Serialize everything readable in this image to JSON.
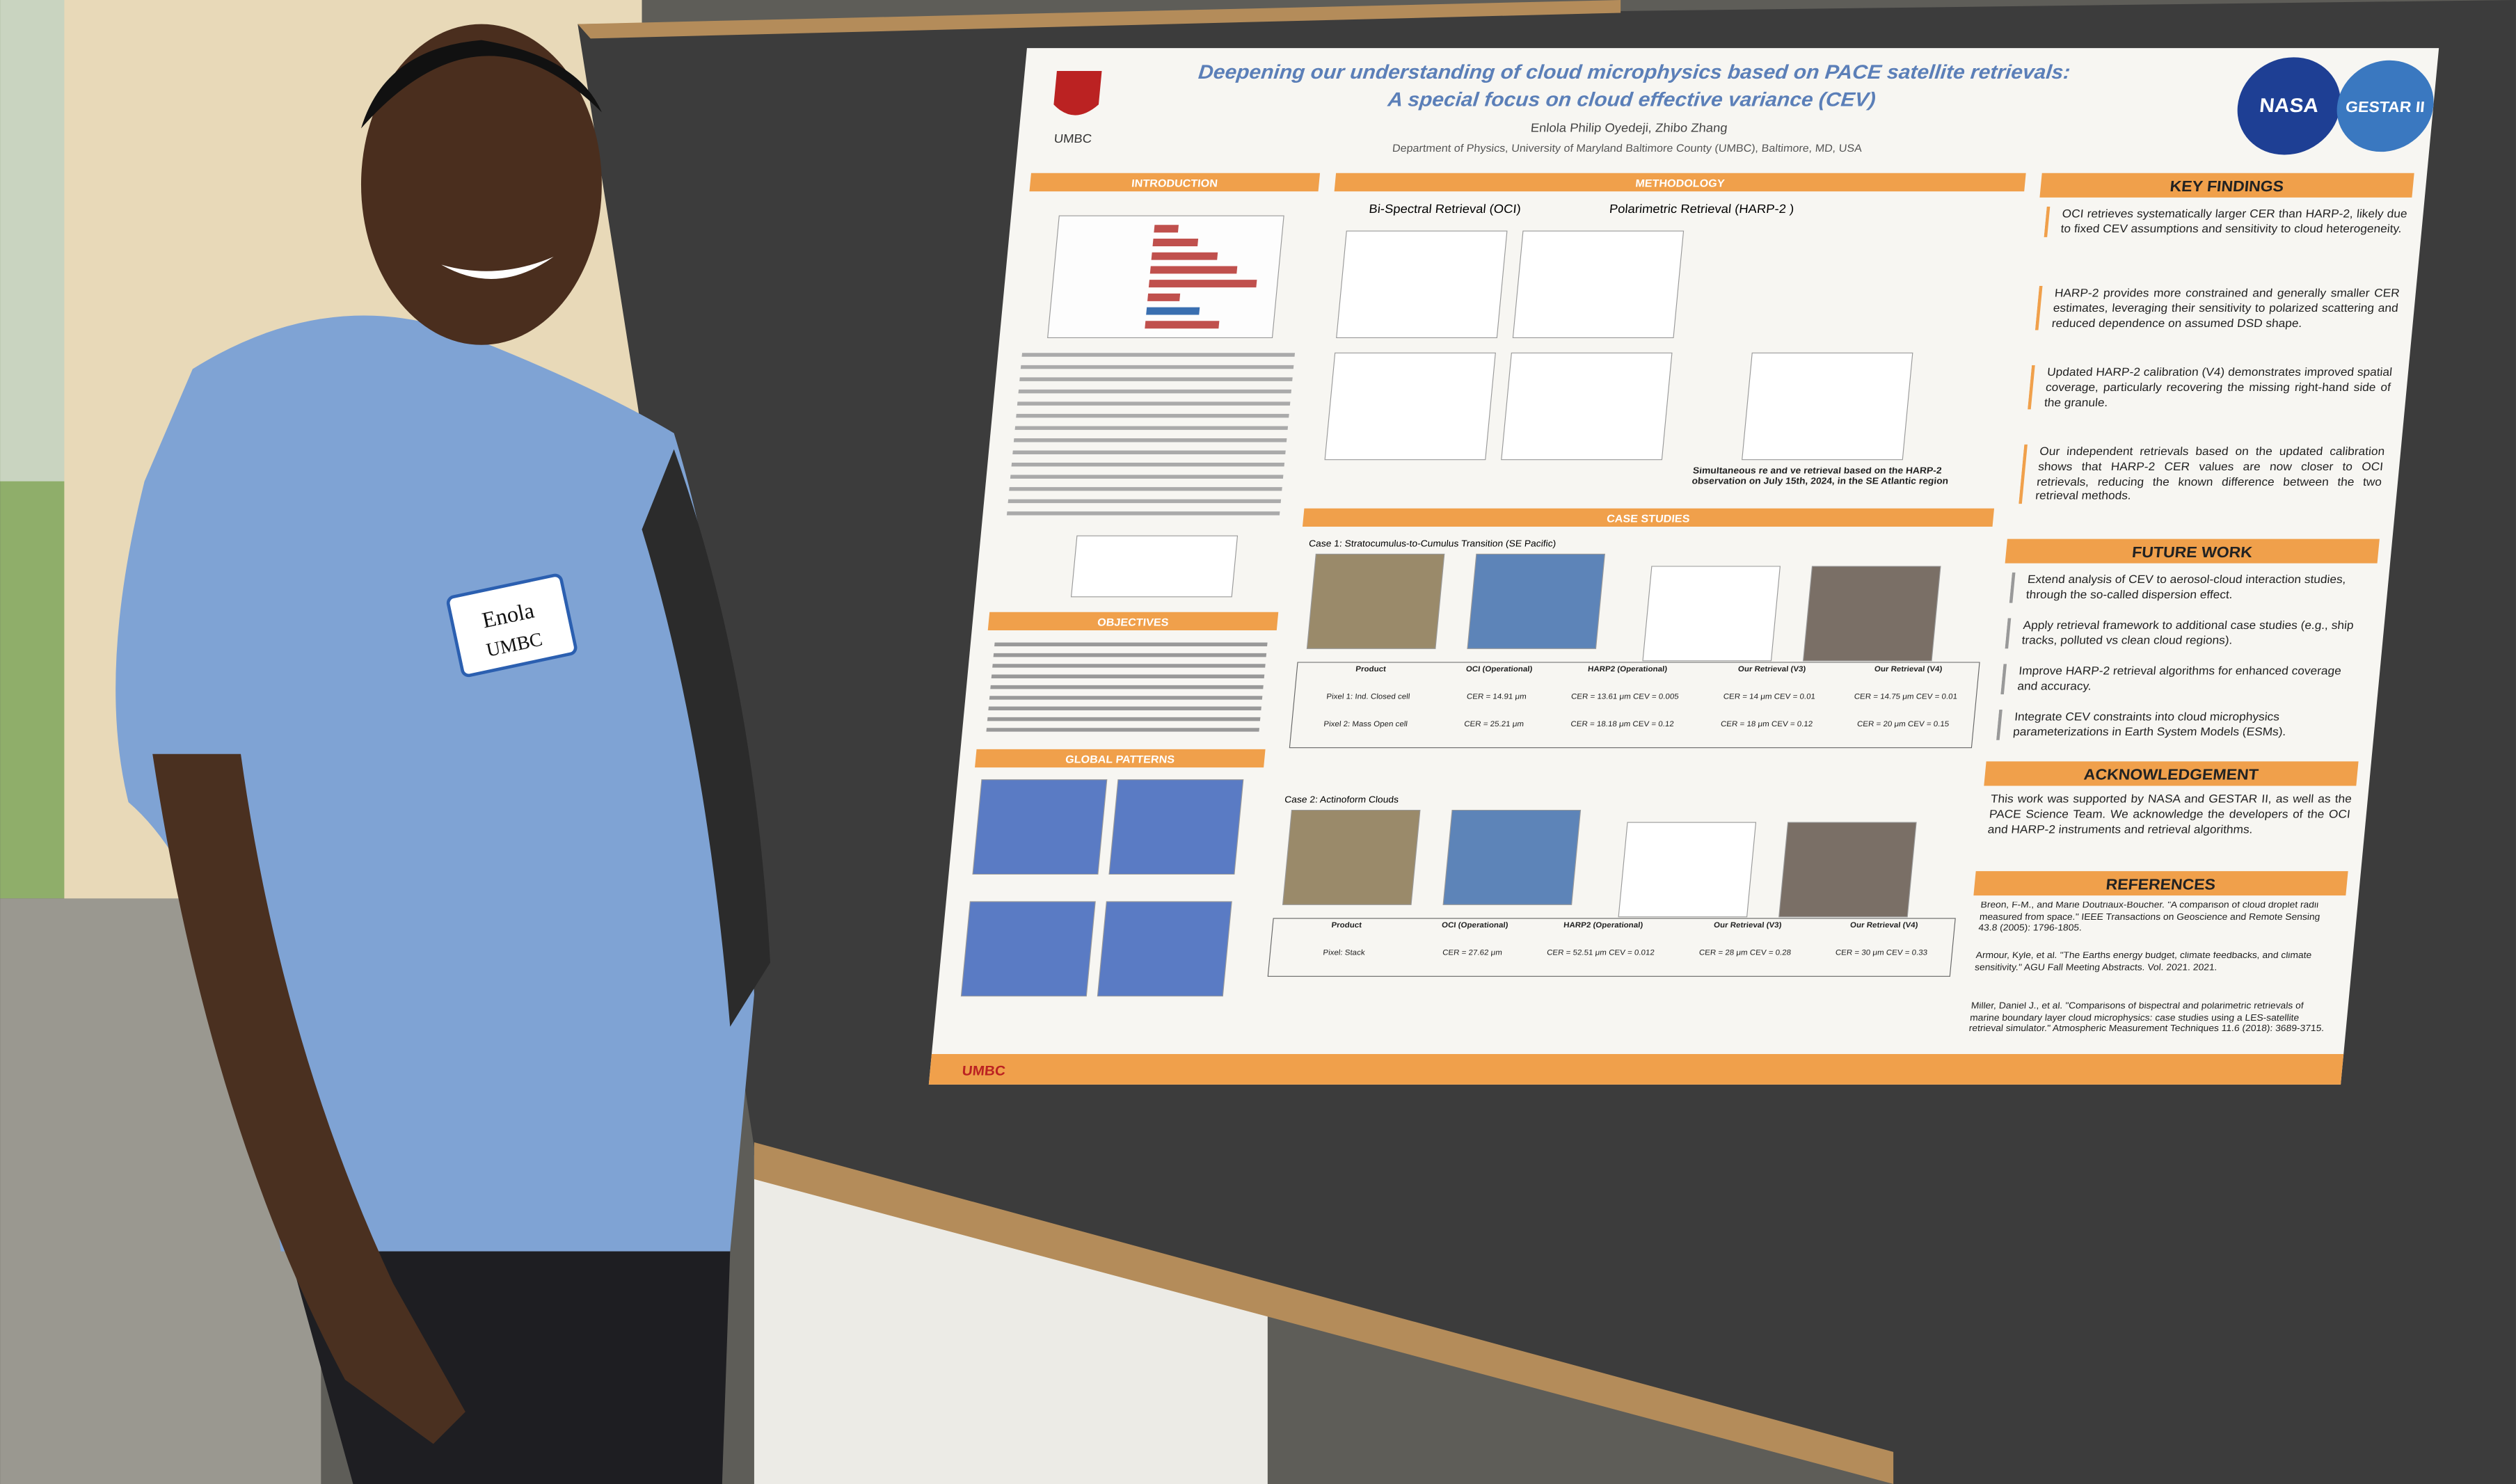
{
  "poster": {
    "title_line1": "Deepening our understanding of cloud microphysics based on PACE satellite retrievals:",
    "title_line2": "A special focus on cloud effective variance (CEV)",
    "authors": "Enlola Philip Oyedeji, Zhibo Zhang",
    "affiliation": "Department of Physics, University of Maryland Baltimore County (UMBC), Baltimore, MD, USA",
    "logo_left": "UMBC",
    "logo_nasa": "NASA",
    "logo_gestar": "GESTAR II",
    "footer_logo": "UMBC",
    "introduction": {
      "heading": "INTRODUCTION"
    },
    "methodology": {
      "heading": "METHODOLOGY",
      "left_title": "Bi-Spectral Retrieval (OCI)",
      "right_title": "Polarimetric Retrieval (HARP-2 )",
      "caption": "Simultaneous re and ve retrieval based on the HARP-2 observation on July 15th, 2024, in the SE Atlantic region"
    },
    "objectives": {
      "heading": "OBJECTIVES"
    },
    "global_patterns": {
      "heading": "GLOBAL PATTERNS"
    },
    "case_studies": {
      "heading": "CASE STUDIES",
      "case1": "Case 1: Stratocumulus-to-Cumulus Transition (SE Pacific)",
      "case2": "Case 2: Actinoform Clouds",
      "table_header": [
        "Product",
        "OCI (Operational)",
        "HARP2 (Operational)",
        "Our Retrieval (V3)",
        "Our Retrieval (V4)"
      ],
      "table1": [
        [
          "Pixel 1: Ind. Closed cell",
          "CER = 14.91 μm",
          "CER = 13.61 μm CEV = 0.005",
          "CER = 14 μm CEV = 0.01",
          "CER = 14.75 μm CEV = 0.01"
        ],
        [
          "Pixel 2: Mass Open cell",
          "CER = 25.21 μm",
          "CER = 18.18 μm CEV = 0.12",
          "CER = 18 μm CEV = 0.12",
          "CER = 20 μm CEV = 0.15"
        ]
      ],
      "table2": [
        [
          "Pixel: Stack",
          "CER = 27.62 μm",
          "CER = 52.51 μm CEV = 0.012",
          "CER = 28 μm CEV = 0.28",
          "CER = 30 μm CEV = 0.33"
        ]
      ]
    },
    "key_findings": {
      "heading": "KEY FINDINGS",
      "items": [
        "OCI retrieves systematically larger CER than HARP-2, likely due to fixed CEV assumptions and sensitivity to cloud heterogeneity.",
        "HARP-2 provides more constrained and generally smaller CER estimates, leveraging their sensitivity to polarized scattering and reduced dependence on assumed DSD shape.",
        "Updated HARP-2 calibration (V4) demonstrates improved spatial coverage, particularly recovering the missing right-hand side of the granule.",
        "Our independent retrievals based on the updated calibration shows that HARP-2 CER values are now closer to OCI retrievals, reducing the known difference between the two retrieval methods."
      ]
    },
    "future_work": {
      "heading": "FUTURE WORK",
      "items": [
        "Extend analysis of CEV to aerosol-cloud interaction studies, through the so-called dispersion effect.",
        "Apply retrieval framework to additional case studies (e.g., ship tracks, polluted vs clean cloud regions).",
        "Improve HARP-2 retrieval algorithms for enhanced coverage and accuracy.",
        "Integrate CEV constraints into cloud microphysics parameterizations in Earth System Models (ESMs)."
      ]
    },
    "acknowledgement": {
      "heading": "ACKNOWLEDGEMENT",
      "text": "This work was supported by NASA and GESTAR II, as well as the PACE Science Team. We acknowledge the developers of the OCI and HARP-2 instruments and retrieval algorithms."
    },
    "references": {
      "heading": "REFERENCES",
      "items": [
        "Breon, F-M., and Marie Doutriaux-Boucher. \"A comparison of cloud droplet radii measured from space.\" IEEE Transactions on Geoscience and Remote Sensing 43.8 (2005): 1796-1805.",
        "Armour, Kyle, et al. \"The Earths energy budget, climate feedbacks, and climate sensitivity.\" AGU Fall Meeting Abstracts. Vol. 2021. 2021.",
        "Miller, Daniel J., et al. \"Comparisons of bispectral and polarimetric retrievals of marine boundary layer cloud microphysics: case studies using a LES-satellite retrieval simulator.\" Atmospheric Measurement Techniques 11.6 (2018): 3689-3715."
      ]
    }
  },
  "name_tag": {
    "name": "Enola",
    "org": "UMBC"
  }
}
